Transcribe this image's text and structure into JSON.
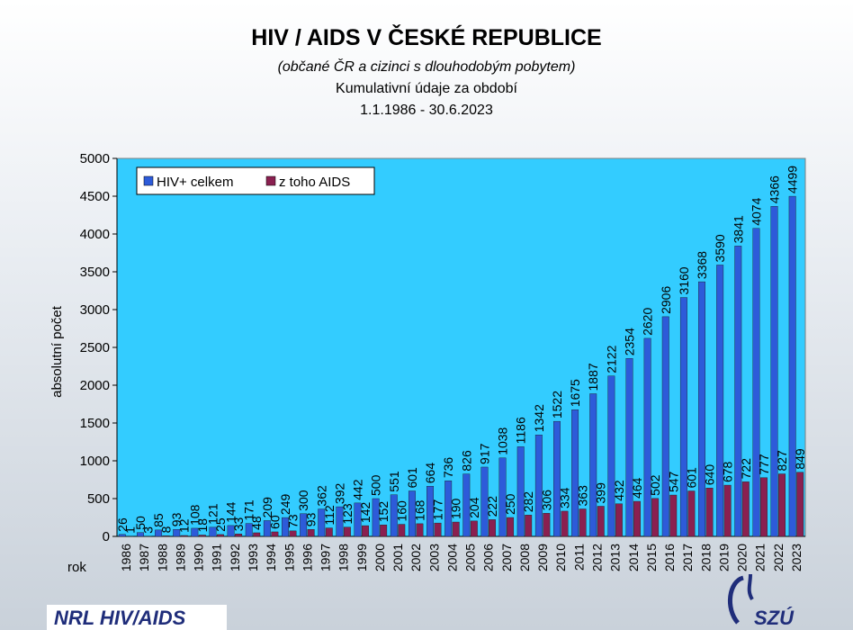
{
  "header": {
    "title": "HIV / AIDS V ČESKÉ REPUBLICE",
    "subtitle": "(občané ČR a cizinci s dlouhodobým pobytem)",
    "subtitle2": "Kumulativní údaje za období",
    "subtitle3": "1.1.1986 - 30.6.2023"
  },
  "footer": {
    "label": "NRL HIV/AIDS",
    "logo_text": "SZÚ"
  },
  "colors": {
    "hiv": "#2d5bd9",
    "aids": "#8a2050",
    "plot_bg": "#33ccff"
  },
  "chart_data": {
    "type": "bar",
    "ylabel": "absolutní počet",
    "xlabel": "rok",
    "ylim": [
      0,
      5000
    ],
    "yticks": [
      0,
      500,
      1000,
      1500,
      2000,
      2500,
      3000,
      3500,
      4000,
      4500,
      5000
    ],
    "categories": [
      "1986",
      "1987",
      "1988",
      "1989",
      "1990",
      "1991",
      "1992",
      "1993",
      "1994",
      "1995",
      "1996",
      "1997",
      "1998",
      "1999",
      "2000",
      "2001",
      "2002",
      "2003",
      "2004",
      "2005",
      "2006",
      "2007",
      "2008",
      "2009",
      "2010",
      "2011",
      "2012",
      "2013",
      "2014",
      "2015",
      "2016",
      "2017",
      "2018",
      "2019",
      "2020",
      "2021",
      "2022",
      "2023"
    ],
    "legend_position": "top-left",
    "series": [
      {
        "name": "HIV+ celkem",
        "values": [
          26,
          50,
          85,
          93,
          108,
          121,
          144,
          171,
          209,
          249,
          300,
          362,
          392,
          442,
          500,
          551,
          601,
          664,
          736,
          826,
          917,
          1038,
          1186,
          1342,
          1522,
          1675,
          1887,
          2122,
          2354,
          2620,
          2906,
          3160,
          3368,
          3590,
          3841,
          4074,
          4366,
          4499
        ]
      },
      {
        "name": "z toho AIDS",
        "values": [
          1,
          3,
          8,
          12,
          18,
          25,
          33,
          48,
          60,
          73,
          93,
          112,
          123,
          142,
          152,
          160,
          168,
          177,
          190,
          204,
          222,
          250,
          282,
          306,
          334,
          363,
          399,
          432,
          464,
          502,
          547,
          601,
          640,
          678,
          722,
          777,
          827,
          849
        ]
      }
    ]
  }
}
